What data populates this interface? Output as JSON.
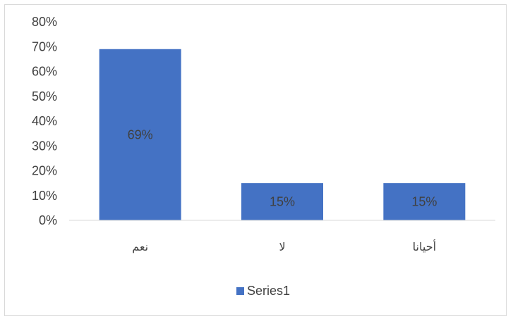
{
  "chart_data": {
    "type": "bar",
    "categories": [
      "نعم",
      "لا",
      "أحيانا"
    ],
    "series": [
      {
        "name": "Series1",
        "values": [
          0.69,
          0.15,
          0.15
        ],
        "data_labels": [
          "69%",
          "15%",
          "15%"
        ],
        "color": "#4472c4"
      }
    ],
    "ylim": [
      0,
      0.8
    ],
    "yticks": [
      "0%",
      "10%",
      "20%",
      "30%",
      "40%",
      "50%",
      "60%",
      "70%",
      "80%"
    ],
    "grid": false,
    "legend": {
      "position": "bottom",
      "entries": [
        "Series1"
      ]
    }
  }
}
